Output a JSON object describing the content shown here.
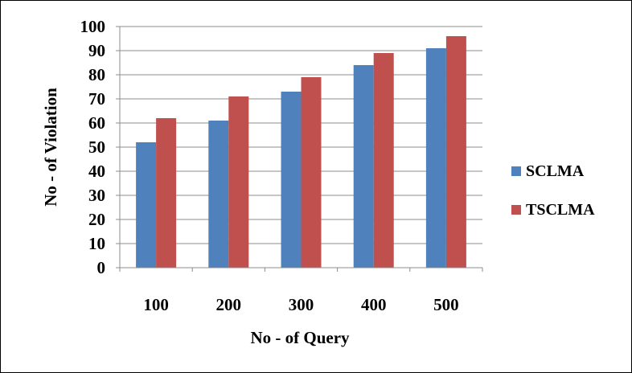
{
  "chart_data": {
    "type": "bar",
    "title": "",
    "xlabel": "No - of Query",
    "ylabel": "No - of  Violation",
    "categories": [
      "100",
      "200",
      "300",
      "400",
      "500"
    ],
    "series": [
      {
        "name": "SCLMA",
        "color": "#4F81BD",
        "values": [
          52,
          61,
          73,
          84,
          91
        ]
      },
      {
        "name": "TSCLMA",
        "color": "#C0504D",
        "values": [
          62,
          71,
          79,
          89,
          96
        ]
      }
    ],
    "ylim": [
      0,
      100
    ],
    "yticks": [
      "0",
      "10",
      "20",
      "30",
      "40",
      "50",
      "60",
      "70",
      "80",
      "90",
      "100"
    ],
    "grid": true,
    "legend_position": "right"
  }
}
